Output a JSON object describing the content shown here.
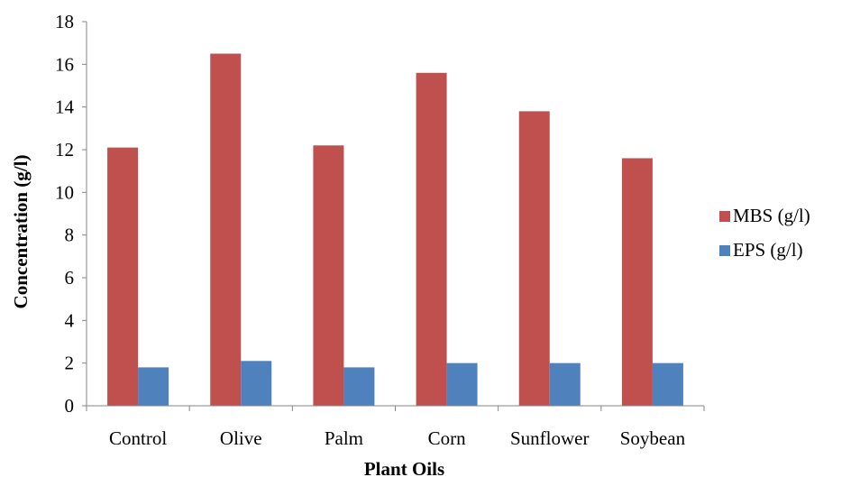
{
  "chart_data": {
    "type": "bar",
    "xlabel": "Plant Oils",
    "ylabel": "Concentration (g/l)",
    "categories": [
      "Control",
      "Olive",
      "Palm",
      "Corn",
      "Sunflower",
      "Soybean"
    ],
    "series": [
      {
        "name": "MBS (g/l)",
        "color": "#c0504d",
        "values": [
          12.1,
          16.5,
          12.2,
          15.6,
          13.8,
          11.6
        ]
      },
      {
        "name": "EPS (g/l)",
        "color": "#4f81bd",
        "values": [
          1.8,
          2.1,
          1.8,
          2.0,
          2.0,
          2.0
        ]
      }
    ],
    "ylim": [
      0,
      18
    ],
    "yticks": [
      "0",
      "2",
      "4",
      "6",
      "8",
      "10",
      "12",
      "14",
      "16",
      "18"
    ],
    "grid": false,
    "legend_position": "right"
  }
}
